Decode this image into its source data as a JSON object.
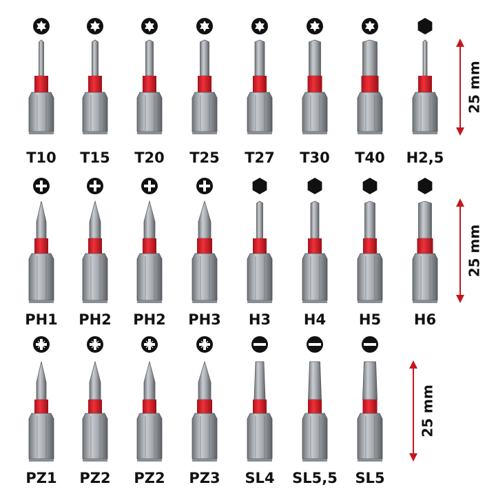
{
  "rows": [
    {
      "labels": [
        "T10",
        "T15",
        "T20",
        "T25",
        "T27",
        "T30",
        "T40",
        "H2,5"
      ],
      "dimension": "25 mm"
    },
    {
      "labels": [
        "PH1",
        "PH2",
        "PH2",
        "PH3",
        "H3",
        "H4",
        "H5",
        "H6"
      ],
      "dimension": "25 mm"
    },
    {
      "labels": [
        "PZ1",
        "PZ2",
        "PZ2",
        "PZ3",
        "SL4",
        "SL5,5",
        "SL5"
      ],
      "dimension": "25 mm"
    }
  ]
}
